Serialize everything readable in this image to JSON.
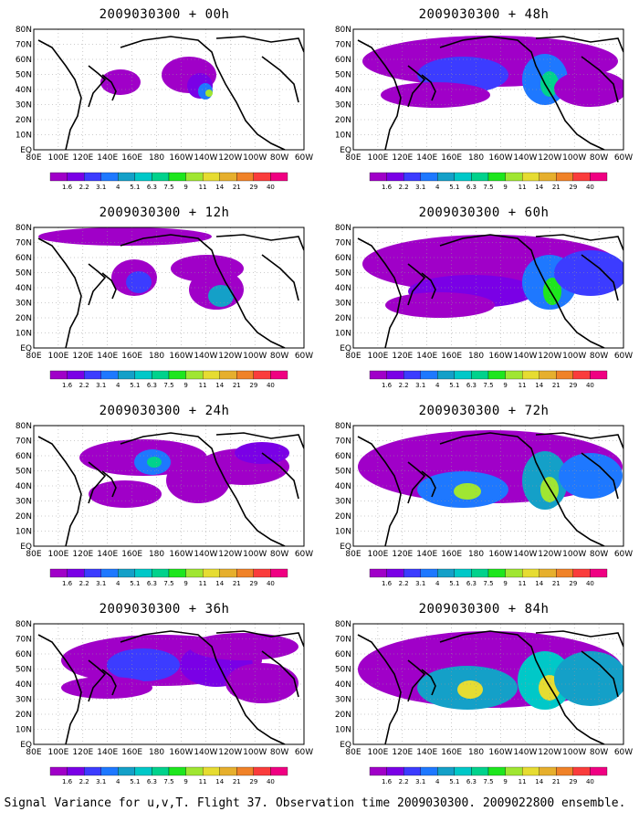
{
  "panels": [
    {
      "title": "2009030300 + 00h",
      "level": 0
    },
    {
      "title": "2009030300 + 12h",
      "level": 1
    },
    {
      "title": "2009030300 + 24h",
      "level": 2
    },
    {
      "title": "2009030300 + 36h",
      "level": 3
    },
    {
      "title": "2009030300 + 48h",
      "level": 4
    },
    {
      "title": "2009030300 + 60h",
      "level": 5
    },
    {
      "title": "2009030300 + 72h",
      "level": 6
    },
    {
      "title": "2009030300 + 84h",
      "level": 7
    }
  ],
  "lat_labels": [
    "80N",
    "70N",
    "60N",
    "50N",
    "40N",
    "30N",
    "20N",
    "10N",
    "EQ"
  ],
  "lon_labels": [
    "80E",
    "100E",
    "120E",
    "140E",
    "160E",
    "180",
    "160W",
    "140W",
    "120W",
    "100W",
    "80W",
    "60W"
  ],
  "colorbar": {
    "labels": [
      "1.6",
      "2.2",
      "3.1",
      "4",
      "5.1",
      "6.3",
      "7.5",
      "9",
      "11",
      "14",
      "21",
      "29",
      "40"
    ],
    "colors": [
      "#a000c8",
      "#7a00e6",
      "#3c3cff",
      "#1e78ff",
      "#14a0c8",
      "#00c8c8",
      "#00d28c",
      "#1ee61e",
      "#a0e632",
      "#e6dc32",
      "#e6af2d",
      "#f08228",
      "#fa3c3c",
      "#f00082"
    ]
  },
  "footer": "Signal Variance for u,v,T. Flight 37. Observation time 2009030300. 2009022800 ensemble."
}
